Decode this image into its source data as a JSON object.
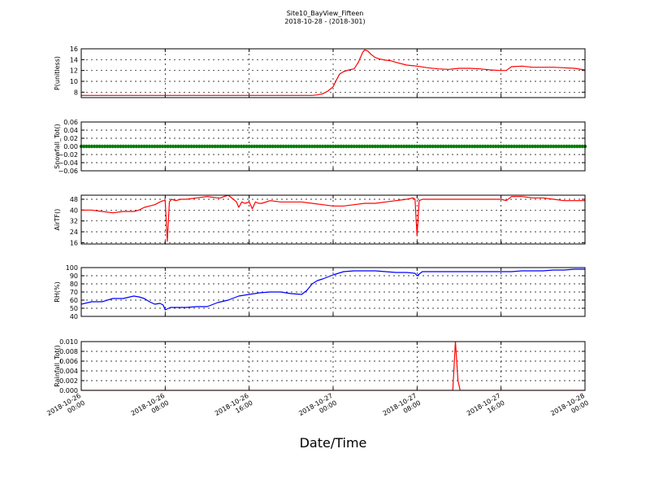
{
  "figure": {
    "title": "Site10_BayView_Fifteen",
    "subtitle": "2018-10-28 - (2018-301)",
    "xlabel": "Date/Time",
    "x_tick_labels": [
      [
        "2018-10-26",
        "00:00"
      ],
      [
        "2018-10-26",
        "08:00"
      ],
      [
        "2018-10-26",
        "16:00"
      ],
      [
        "2018-10-27",
        "00:00"
      ],
      [
        "2018-10-27",
        "08:00"
      ],
      [
        "2018-10-27",
        "16:00"
      ],
      [
        "2018-10-28",
        "00:00"
      ]
    ]
  },
  "chart_data": [
    {
      "type": "line",
      "ylabel": "P(unitless)",
      "color": "#ff0000",
      "xlim": [
        0,
        48
      ],
      "ylim": [
        7,
        16
      ],
      "y_ticks": [
        8,
        10,
        12,
        14,
        16
      ],
      "y_tick_labels": [
        "8",
        "10",
        "12",
        "14",
        "16"
      ],
      "grid": true,
      "x": [
        0,
        4,
        8,
        12,
        16,
        20,
        22,
        22.5,
        23,
        23.5,
        24,
        24.3,
        24.6,
        25,
        25.5,
        26,
        26.4,
        26.8,
        27,
        27.3,
        27.6,
        28,
        28.5,
        29,
        29.5,
        30,
        31,
        32,
        33,
        34,
        35,
        36,
        37,
        38,
        39,
        40,
        40.5,
        41,
        42,
        43,
        44,
        45,
        46,
        47,
        48
      ],
      "y": [
        7.4,
        7.4,
        7.4,
        7.4,
        7.4,
        7.4,
        7.4,
        7.5,
        7.7,
        8.2,
        9,
        10.2,
        11.3,
        11.8,
        12.1,
        12.3,
        13.5,
        15.3,
        15.8,
        15.6,
        15,
        14.4,
        14.1,
        13.9,
        13.8,
        13.5,
        13,
        12.8,
        12.5,
        12.3,
        12.2,
        12.4,
        12.4,
        12.3,
        12.1,
        12.0,
        12.0,
        12.7,
        12.8,
        12.6,
        12.6,
        12.6,
        12.5,
        12.4,
        12.1
      ]
    },
    {
      "type": "line",
      "ylabel": "Snowfall_Tot()",
      "color": "#008000",
      "marker": "dot",
      "xlim": [
        0,
        48
      ],
      "ylim": [
        -0.06,
        0.06
      ],
      "y_ticks": [
        -0.06,
        -0.04,
        -0.02,
        0,
        0.02,
        0.04,
        0.06
      ],
      "y_tick_labels": [
        "−0.06",
        "−0.04",
        "−0.02",
        "0.00",
        "0.02",
        "0.04",
        "0.06"
      ],
      "grid": true,
      "x": [
        0,
        48
      ],
      "y": [
        0,
        0
      ]
    },
    {
      "type": "line",
      "ylabel": "AirTF()",
      "color": "#ff0000",
      "xlim": [
        0,
        48
      ],
      "ylim": [
        15,
        51
      ],
      "y_ticks": [
        16,
        24,
        32,
        40,
        48
      ],
      "y_tick_labels": [
        "16",
        "24",
        "32",
        "40",
        "48"
      ],
      "grid": true,
      "x": [
        0,
        1,
        2,
        3,
        4,
        5,
        5.5,
        6,
        6.5,
        7,
        7.5,
        7.8,
        8,
        8.2,
        8.4,
        8.6,
        9,
        9.5,
        10,
        11,
        12,
        13,
        13.3,
        13.6,
        14,
        14.5,
        14.8,
        15,
        15.3,
        15.6,
        16,
        16.3,
        16.6,
        16.9,
        17.2,
        18,
        19,
        20,
        21,
        22,
        23,
        24,
        25,
        26,
        27,
        28,
        29,
        30,
        31,
        31.6,
        31.8,
        32,
        32.2,
        32.5,
        33,
        33.5,
        34,
        35,
        36,
        37,
        38,
        39,
        40,
        40.5,
        41,
        41.5,
        42,
        43,
        44,
        45,
        46,
        47,
        48
      ],
      "y": [
        40,
        40,
        39,
        38,
        39,
        39,
        40,
        42,
        43,
        44,
        46,
        47,
        47,
        17,
        46,
        48,
        47,
        48,
        48,
        49,
        50,
        49,
        49,
        50,
        51,
        48,
        46,
        42,
        46,
        45,
        46,
        41,
        46,
        45,
        45,
        47,
        46,
        46,
        46,
        45,
        44,
        43,
        43,
        44,
        45,
        45,
        46,
        47,
        48,
        49,
        48,
        21,
        47,
        48,
        48,
        48,
        48,
        48,
        48,
        48,
        48,
        48,
        48,
        47,
        50,
        50,
        50,
        49,
        49,
        48,
        47,
        47,
        47
      ]
    },
    {
      "type": "line",
      "ylabel": "RH(%)",
      "color": "#0000ff",
      "xlim": [
        0,
        48
      ],
      "ylim": [
        40,
        100
      ],
      "y_ticks": [
        40,
        50,
        60,
        70,
        80,
        90,
        100
      ],
      "y_tick_labels": [
        "40",
        "50",
        "60",
        "70",
        "80",
        "90",
        "100"
      ],
      "grid": true,
      "x": [
        0,
        1,
        2,
        3,
        4,
        5,
        5.5,
        6,
        6.5,
        7,
        7.5,
        7.8,
        8,
        8.5,
        9,
        10,
        11,
        12,
        13,
        14,
        15,
        16,
        17,
        18,
        19,
        20,
        21,
        21.5,
        22,
        22.5,
        23,
        24,
        25,
        26,
        27,
        28,
        29,
        30,
        31,
        31.8,
        32,
        32.5,
        33,
        34,
        35,
        36,
        37,
        38,
        39,
        40,
        41,
        42,
        43,
        44,
        45,
        46,
        47,
        48
      ],
      "y": [
        55,
        58,
        58,
        62,
        62,
        65,
        64,
        62,
        58,
        55,
        56,
        54,
        48,
        51,
        51,
        51,
        52,
        52,
        57,
        60,
        65,
        67,
        69,
        70,
        70,
        68,
        67,
        72,
        80,
        84,
        86,
        91,
        95,
        96,
        96,
        96,
        95,
        94,
        94,
        93,
        90,
        95,
        95,
        95,
        95,
        95,
        95,
        95,
        95,
        95,
        95,
        96,
        96,
        96,
        97,
        97,
        98,
        98
      ]
    },
    {
      "type": "line",
      "ylabel": "Rainfall_Tot()",
      "color": "#ff0000",
      "xlim": [
        0,
        48
      ],
      "ylim": [
        0,
        0.01
      ],
      "y_ticks": [
        0,
        0.002,
        0.004,
        0.006,
        0.008,
        0.01
      ],
      "y_tick_labels": [
        "0.000",
        "0.002",
        "0.004",
        "0.006",
        "0.008",
        "0.010"
      ],
      "grid": true,
      "x": [
        0,
        35.4,
        35.65,
        35.9,
        36.1,
        48
      ],
      "y": [
        0,
        0,
        0.01,
        0.002,
        0,
        0
      ]
    }
  ]
}
